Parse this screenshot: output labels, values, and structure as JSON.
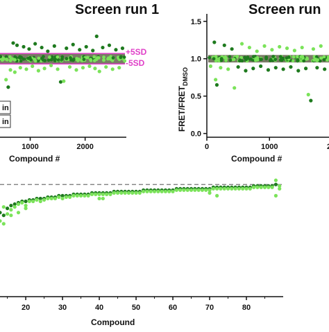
{
  "chart_data": [
    {
      "id": "left-top",
      "type": "scatter",
      "title": "Screen run 1",
      "xlabel": "Compound #",
      "ylabel": "",
      "xlim": [
        450,
        2750
      ],
      "ylim": [
        -0.05,
        1.6
      ],
      "xticks": [
        1000,
        2000
      ],
      "yticks": [],
      "threshold_labels": [
        "+5SD",
        "-5SD"
      ],
      "threshold_band": [
        0.93,
        1.07
      ],
      "legend_fragments": [
        "in",
        "in"
      ],
      "colors": {
        "dark": "#1e7a1e",
        "light": "#7be35a",
        "band": "#7a7a66",
        "sd_line": "#e040c8"
      },
      "points": [
        {
          "x": 560,
          "y": 0.72
        },
        {
          "x": 600,
          "y": 0.62
        },
        {
          "x": 640,
          "y": 0.85
        },
        {
          "x": 690,
          "y": 1.21
        },
        {
          "x": 720,
          "y": 0.82
        },
        {
          "x": 760,
          "y": 1.18
        },
        {
          "x": 820,
          "y": 0.88
        },
        {
          "x": 880,
          "y": 1.16
        },
        {
          "x": 930,
          "y": 0.86
        },
        {
          "x": 980,
          "y": 1.13
        },
        {
          "x": 1040,
          "y": 0.9
        },
        {
          "x": 1090,
          "y": 1.2
        },
        {
          "x": 1150,
          "y": 0.84
        },
        {
          "x": 1210,
          "y": 1.15
        },
        {
          "x": 1260,
          "y": 0.87
        },
        {
          "x": 1320,
          "y": 1.1
        },
        {
          "x": 1380,
          "y": 0.91
        },
        {
          "x": 1440,
          "y": 1.17
        },
        {
          "x": 1500,
          "y": 0.86
        },
        {
          "x": 1555,
          "y": 0.69
        },
        {
          "x": 1610,
          "y": 0.7
        },
        {
          "x": 1660,
          "y": 1.14
        },
        {
          "x": 1720,
          "y": 0.89
        },
        {
          "x": 1780,
          "y": 1.19
        },
        {
          "x": 1840,
          "y": 0.85
        },
        {
          "x": 1900,
          "y": 1.12
        },
        {
          "x": 1960,
          "y": 0.88
        },
        {
          "x": 2020,
          "y": 1.16
        },
        {
          "x": 2080,
          "y": 0.9
        },
        {
          "x": 2140,
          "y": 1.11
        },
        {
          "x": 2180,
          "y": 0.87
        },
        {
          "x": 2210,
          "y": 1.3
        },
        {
          "x": 2260,
          "y": 0.83
        },
        {
          "x": 2320,
          "y": 1.15
        },
        {
          "x": 2380,
          "y": 0.89
        },
        {
          "x": 2440,
          "y": 1.18
        },
        {
          "x": 2500,
          "y": 0.86
        },
        {
          "x": 2560,
          "y": 1.12
        },
        {
          "x": 2620,
          "y": 0.88
        },
        {
          "x": 2680,
          "y": 1.14
        }
      ]
    },
    {
      "id": "right-top",
      "type": "scatter",
      "title": "Screen run",
      "xlabel": "Compound #",
      "ylabel": "FRET/FRET",
      "ylabel_sub": "DMSO",
      "xlim": [
        0,
        1950
      ],
      "ylim": [
        -0.05,
        1.6
      ],
      "xticks": [
        0,
        1000
      ],
      "xtick_extra": "2",
      "yticks": [
        0.0,
        0.5,
        1.0,
        1.5
      ],
      "ytick_labels": [
        "0.0",
        "0.5",
        "1.0",
        "1.5"
      ],
      "threshold_band": [
        0.95,
        1.05
      ],
      "colors": {
        "dark": "#1e7a1e",
        "light": "#7be35a",
        "band": "#7a7a66"
      },
      "points": [
        {
          "x": 60,
          "y": 0.9
        },
        {
          "x": 120,
          "y": 1.22
        },
        {
          "x": 140,
          "y": 0.72
        },
        {
          "x": 160,
          "y": 0.65
        },
        {
          "x": 220,
          "y": 0.88
        },
        {
          "x": 280,
          "y": 1.18
        },
        {
          "x": 340,
          "y": 0.86
        },
        {
          "x": 400,
          "y": 1.13
        },
        {
          "x": 440,
          "y": 0.61
        },
        {
          "x": 500,
          "y": 0.89
        },
        {
          "x": 560,
          "y": 1.2
        },
        {
          "x": 620,
          "y": 0.84
        },
        {
          "x": 680,
          "y": 1.15
        },
        {
          "x": 740,
          "y": 0.87
        },
        {
          "x": 800,
          "y": 1.1
        },
        {
          "x": 860,
          "y": 0.9
        },
        {
          "x": 920,
          "y": 1.17
        },
        {
          "x": 980,
          "y": 0.85
        },
        {
          "x": 1040,
          "y": 1.12
        },
        {
          "x": 1100,
          "y": 0.88
        },
        {
          "x": 1160,
          "y": 1.16
        },
        {
          "x": 1220,
          "y": 0.86
        },
        {
          "x": 1280,
          "y": 1.14
        },
        {
          "x": 1340,
          "y": 0.89
        },
        {
          "x": 1400,
          "y": 1.11
        },
        {
          "x": 1460,
          "y": 0.84
        },
        {
          "x": 1520,
          "y": 1.15
        },
        {
          "x": 1580,
          "y": 0.87
        },
        {
          "x": 1620,
          "y": 0.52
        },
        {
          "x": 1660,
          "y": 0.44
        },
        {
          "x": 1700,
          "y": 1.13
        },
        {
          "x": 1760,
          "y": 0.88
        },
        {
          "x": 1820,
          "y": 1.17
        },
        {
          "x": 1880,
          "y": 0.86
        }
      ]
    },
    {
      "id": "bottom",
      "type": "scatter",
      "title": "",
      "xlabel": "Compound",
      "ylabel": "",
      "xlim": [
        13,
        90
      ],
      "ylim": [
        0.2,
        1.1
      ],
      "xticks": [
        20,
        30,
        40,
        50,
        60,
        70,
        80
      ],
      "reference_line": 1.0,
      "colors": {
        "dark": "#1e7a1e",
        "light": "#7be35a",
        "ref": "#888888"
      },
      "series": [
        {
          "values": [
            [
              13,
              0.8
            ],
            [
              14,
              0.78
            ],
            [
              15,
              0.83
            ],
            [
              16,
              0.85
            ],
            [
              17,
              0.86
            ],
            [
              18,
              0.87
            ],
            [
              19,
              0.88
            ],
            [
              20,
              0.88
            ],
            [
              21,
              0.89
            ],
            [
              22,
              0.89
            ],
            [
              23,
              0.9
            ],
            [
              24,
              0.9
            ],
            [
              25,
              0.9
            ],
            [
              26,
              0.91
            ],
            [
              27,
              0.91
            ],
            [
              28,
              0.91
            ],
            [
              29,
              0.92
            ],
            [
              30,
              0.92
            ],
            [
              31,
              0.92
            ],
            [
              32,
              0.92
            ],
            [
              33,
              0.93
            ],
            [
              34,
              0.93
            ],
            [
              35,
              0.93
            ],
            [
              36,
              0.93
            ],
            [
              37,
              0.93
            ],
            [
              38,
              0.94
            ],
            [
              39,
              0.94
            ],
            [
              40,
              0.94
            ],
            [
              41,
              0.94
            ],
            [
              42,
              0.94
            ],
            [
              43,
              0.94
            ],
            [
              44,
              0.95
            ],
            [
              45,
              0.95
            ],
            [
              46,
              0.95
            ],
            [
              47,
              0.95
            ],
            [
              48,
              0.95
            ],
            [
              49,
              0.95
            ],
            [
              50,
              0.95
            ],
            [
              51,
              0.95
            ],
            [
              52,
              0.96
            ],
            [
              53,
              0.96
            ],
            [
              54,
              0.96
            ],
            [
              55,
              0.96
            ],
            [
              56,
              0.96
            ],
            [
              57,
              0.96
            ],
            [
              58,
              0.96
            ],
            [
              59,
              0.96
            ],
            [
              60,
              0.96
            ],
            [
              61,
              0.97
            ],
            [
              62,
              0.97
            ],
            [
              63,
              0.97
            ],
            [
              64,
              0.97
            ],
            [
              65,
              0.97
            ],
            [
              66,
              0.97
            ],
            [
              67,
              0.97
            ],
            [
              68,
              0.97
            ],
            [
              69,
              0.97
            ],
            [
              70,
              0.97
            ],
            [
              71,
              0.98
            ],
            [
              72,
              0.98
            ],
            [
              73,
              0.98
            ],
            [
              74,
              0.98
            ],
            [
              75,
              0.98
            ],
            [
              76,
              0.98
            ],
            [
              77,
              0.98
            ],
            [
              78,
              0.98
            ],
            [
              79,
              0.98
            ],
            [
              80,
              0.98
            ],
            [
              81,
              0.98
            ],
            [
              82,
              0.99
            ],
            [
              83,
              0.99
            ],
            [
              84,
              0.99
            ],
            [
              85,
              0.99
            ],
            [
              86,
              0.99
            ],
            [
              87,
              0.99
            ],
            [
              88,
              1.0
            ]
          ]
        },
        {
          "values": [
            [
              13,
              0.74
            ],
            [
              14,
              0.84
            ],
            [
              15,
              0.79
            ],
            [
              16,
              0.82
            ],
            [
              17,
              0.84
            ],
            [
              18,
              0.86
            ],
            [
              19,
              0.87
            ],
            [
              20,
              0.85
            ],
            [
              21,
              0.88
            ],
            [
              22,
              0.88
            ],
            [
              23,
              0.89
            ],
            [
              24,
              0.88
            ],
            [
              25,
              0.89
            ],
            [
              26,
              0.9
            ],
            [
              27,
              0.9
            ],
            [
              28,
              0.9
            ],
            [
              29,
              0.91
            ],
            [
              30,
              0.9
            ],
            [
              31,
              0.91
            ],
            [
              32,
              0.91
            ],
            [
              33,
              0.92
            ],
            [
              34,
              0.92
            ],
            [
              35,
              0.92
            ],
            [
              36,
              0.92
            ],
            [
              37,
              0.92
            ],
            [
              38,
              0.93
            ],
            [
              39,
              0.93
            ],
            [
              40,
              0.93
            ],
            [
              41,
              0.93
            ],
            [
              42,
              0.93
            ],
            [
              43,
              0.93
            ],
            [
              44,
              0.94
            ],
            [
              45,
              0.94
            ],
            [
              46,
              0.94
            ],
            [
              47,
              0.94
            ],
            [
              48,
              0.94
            ],
            [
              49,
              0.94
            ],
            [
              50,
              0.94
            ],
            [
              51,
              0.94
            ],
            [
              52,
              0.95
            ],
            [
              53,
              0.95
            ],
            [
              54,
              0.95
            ],
            [
              55,
              0.95
            ],
            [
              56,
              0.95
            ],
            [
              57,
              0.95
            ],
            [
              58,
              0.95
            ],
            [
              59,
              0.95
            ],
            [
              60,
              0.95
            ],
            [
              61,
              0.96
            ],
            [
              62,
              0.96
            ],
            [
              63,
              0.96
            ],
            [
              64,
              0.96
            ],
            [
              65,
              0.96
            ],
            [
              66,
              0.96
            ],
            [
              67,
              0.96
            ],
            [
              68,
              0.96
            ],
            [
              69,
              0.96
            ],
            [
              70,
              0.96
            ],
            [
              71,
              0.97
            ],
            [
              72,
              0.97
            ],
            [
              73,
              0.97
            ],
            [
              74,
              0.97
            ],
            [
              75,
              0.97
            ],
            [
              76,
              0.97
            ],
            [
              77,
              0.97
            ],
            [
              78,
              0.97
            ],
            [
              79,
              0.97
            ],
            [
              80,
              0.97
            ],
            [
              81,
              0.97
            ],
            [
              82,
              0.98
            ],
            [
              83,
              0.98
            ],
            [
              84,
              0.98
            ],
            [
              85,
              0.98
            ],
            [
              86,
              0.98
            ],
            [
              87,
              0.98
            ],
            [
              88,
              1.03
            ]
          ]
        },
        {
          "values": [
            [
              14,
              0.72
            ],
            [
              16,
              0.78
            ],
            [
              18,
              0.8
            ],
            [
              20,
              0.83
            ],
            [
              40,
              0.9
            ],
            [
              41,
              0.9
            ],
            [
              70,
              0.94
            ],
            [
              72,
              0.92
            ],
            [
              88,
              0.92
            ],
            [
              89,
              0.99
            ],
            [
              89,
              0.97
            ]
          ]
        }
      ]
    }
  ]
}
